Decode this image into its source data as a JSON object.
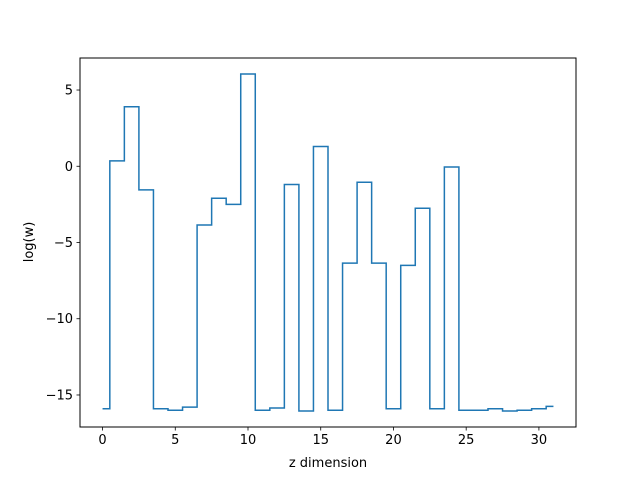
{
  "chart_data": {
    "type": "line",
    "drawstyle": "steps-mid",
    "title": "",
    "xlabel": "z dimension",
    "ylabel": "log(w)",
    "xlim": [
      -1.55,
      32.55
    ],
    "ylim": [
      -17.1,
      7.1
    ],
    "xticks": [
      0,
      5,
      10,
      15,
      20,
      25,
      30
    ],
    "yticks": [
      5,
      0,
      -5,
      -10,
      -15
    ],
    "ytick_labels": [
      "5",
      "0",
      "−5",
      "−10",
      "−15"
    ],
    "grid": false,
    "legend": "none",
    "series": [
      {
        "color": "#1f77b4",
        "x": [
          0,
          1,
          2,
          3,
          4,
          5,
          6,
          7,
          8,
          9,
          10,
          11,
          12,
          13,
          14,
          15,
          16,
          17,
          18,
          19,
          20,
          21,
          22,
          23,
          24,
          25,
          26,
          27,
          28,
          29,
          30,
          31
        ],
        "values": [
          -15.9,
          0.35,
          3.9,
          -1.55,
          -15.9,
          -16.0,
          -15.8,
          -3.85,
          -2.1,
          -2.5,
          6.05,
          -16.0,
          -15.85,
          -1.2,
          -16.05,
          1.3,
          -16.0,
          -6.35,
          -1.05,
          -6.35,
          -15.9,
          -6.5,
          -2.75,
          -15.9,
          -0.05,
          -16.0,
          -16.0,
          -15.9,
          -16.05,
          -16.0,
          -15.9,
          -15.75
        ]
      }
    ]
  }
}
